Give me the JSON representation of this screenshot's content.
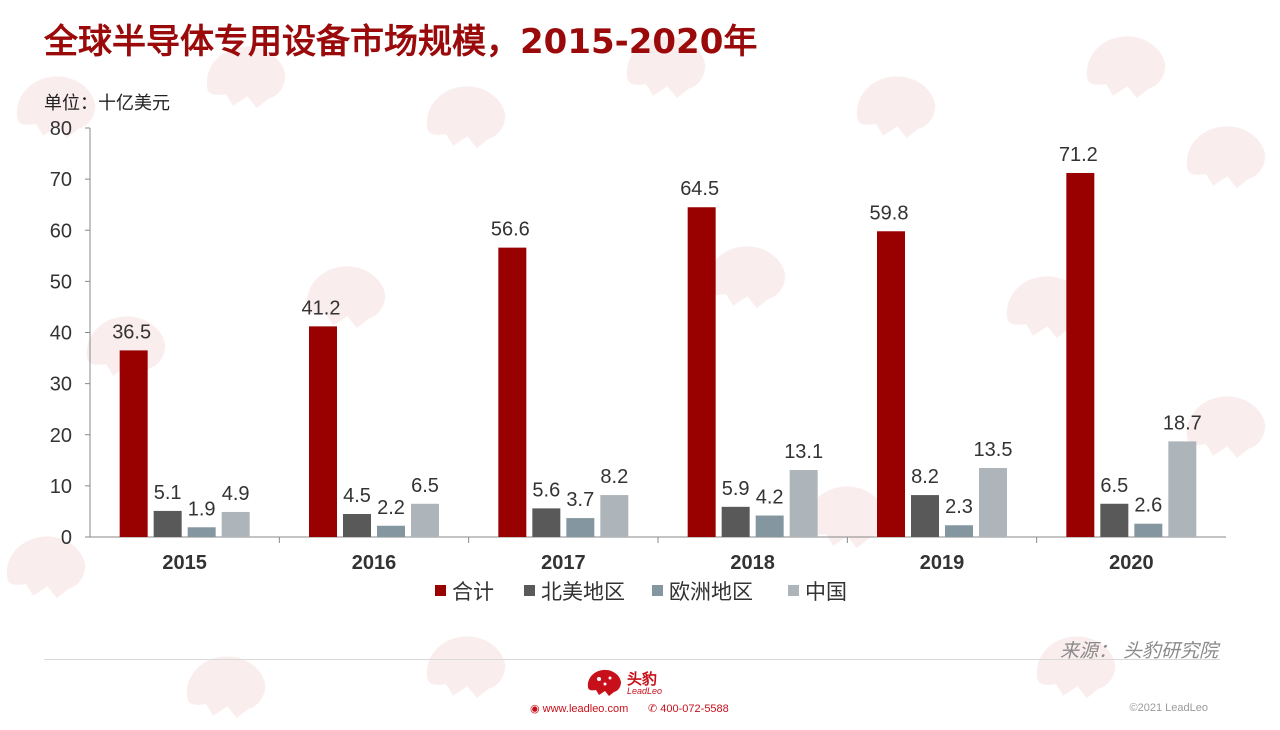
{
  "title": "全球半导体专用设备市场规模，2015-2020年",
  "unit_label": "单位：十亿美元",
  "source": "来源：  头豹研究院",
  "footer": {
    "logo_cn": "头豹",
    "logo_en": "LeadLeo",
    "website": "www.leadleo.com",
    "phone": "400-072-5588",
    "copyright": "©2021 LeadLeo"
  },
  "colors": {
    "title": "#9b0a0a",
    "series": [
      "#990000",
      "#595959",
      "#8497a0",
      "#adb5ba"
    ]
  },
  "chart_data": {
    "type": "bar",
    "title": "全球半导体专用设备市场规模，2015-2020年",
    "ylabel": "单位：十亿美元",
    "categories": [
      "2015",
      "2016",
      "2017",
      "2018",
      "2019",
      "2020"
    ],
    "ylim": [
      0,
      80
    ],
    "yticks": [
      0,
      10,
      20,
      30,
      40,
      50,
      60,
      70,
      80
    ],
    "grid": false,
    "legend_position": "bottom",
    "series": [
      {
        "name": "合计",
        "values": [
          36.5,
          41.2,
          56.6,
          64.5,
          59.8,
          71.2
        ]
      },
      {
        "name": "北美地区",
        "values": [
          5.1,
          4.5,
          5.6,
          5.9,
          8.2,
          6.5
        ]
      },
      {
        "name": "欧洲地区",
        "values": [
          1.9,
          2.2,
          3.7,
          4.2,
          2.3,
          2.6
        ]
      },
      {
        "name": "中国",
        "values": [
          4.9,
          6.5,
          8.2,
          13.1,
          13.5,
          18.7
        ]
      }
    ]
  }
}
